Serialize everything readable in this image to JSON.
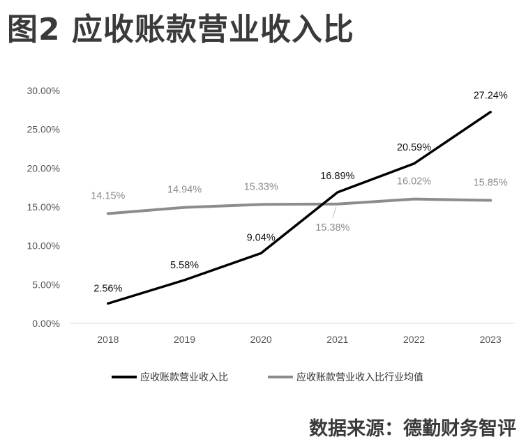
{
  "title": "图2 应收账款营业收入比",
  "source": "数据来源：德勤财务智评",
  "chart_data": {
    "type": "line",
    "categories": [
      "2018",
      "2019",
      "2020",
      "2021",
      "2022",
      "2023"
    ],
    "y_ticks": [
      "0.00%",
      "5.00%",
      "10.00%",
      "15.00%",
      "20.00%",
      "25.00%",
      "30.00%"
    ],
    "ylim": [
      0,
      30
    ],
    "grid": false,
    "legend_position": "bottom",
    "series": [
      {
        "name": "应收账款营业收入比",
        "color": "#000000",
        "values": [
          2.56,
          5.58,
          9.04,
          16.89,
          20.59,
          27.24
        ],
        "labels": [
          "2.56%",
          "5.58%",
          "9.04%",
          "16.89%",
          "20.59%",
          "27.24%"
        ]
      },
      {
        "name": "应收账款营业收入比行业均值",
        "color": "#8c8c8c",
        "values": [
          14.15,
          14.94,
          15.33,
          15.38,
          16.02,
          15.85
        ],
        "labels": [
          "14.15%",
          "14.94%",
          "15.33%",
          "15.38%",
          "16.02%",
          "15.85%"
        ]
      }
    ]
  }
}
